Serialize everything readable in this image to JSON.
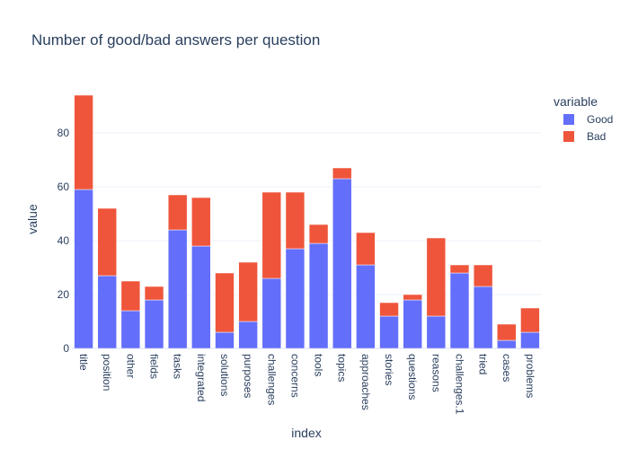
{
  "chart_data": {
    "type": "bar",
    "stacked": true,
    "title": "Number of good/bad answers per question",
    "xlabel": "index",
    "ylabel": "value",
    "ylim": [
      0,
      96
    ],
    "yticks": [
      0,
      20,
      40,
      60,
      80
    ],
    "grid": true,
    "legend_title": "variable",
    "legend_position": "right",
    "categories": [
      "title",
      "position",
      "other",
      "fields",
      "tasks",
      "integrated",
      "solutions",
      "purposes",
      "challenges",
      "concerns",
      "tools",
      "topics",
      "approaches",
      "stories",
      "questions",
      "reasons",
      "challenges.1",
      "tried",
      "cases",
      "problems"
    ],
    "series": [
      {
        "name": "Good",
        "color": "#636efa",
        "values": [
          59,
          27,
          14,
          18,
          44,
          38,
          6,
          10,
          26,
          37,
          39,
          63,
          31,
          12,
          18,
          12,
          28,
          23,
          3,
          6
        ]
      },
      {
        "name": "Bad",
        "color": "#ef553b",
        "values": [
          35,
          25,
          11,
          5,
          13,
          18,
          22,
          22,
          32,
          21,
          7,
          4,
          12,
          5,
          2,
          29,
          3,
          8,
          6,
          9
        ]
      }
    ]
  }
}
